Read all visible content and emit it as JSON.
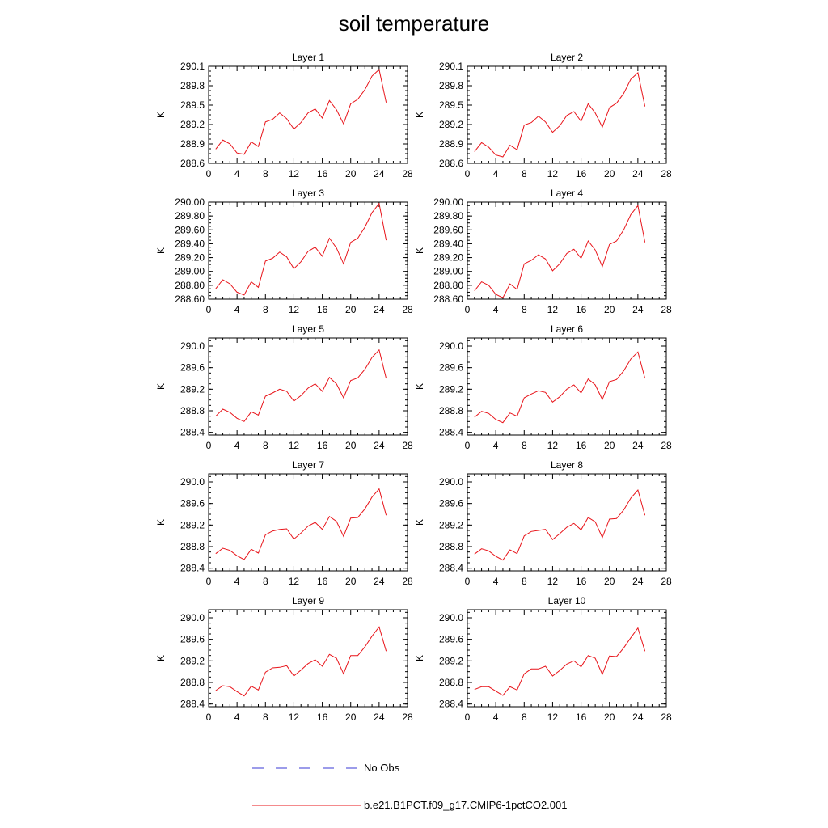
{
  "title": "soil temperature",
  "colors": {
    "model": "#e8141a",
    "obs": "#3a3ad6",
    "axis": "#000000"
  },
  "chart_data": [
    {
      "type": "line",
      "title": "Layer 1",
      "ylabel": "K",
      "xlim": [
        0,
        28
      ],
      "ylim": [
        288.6,
        290.1
      ],
      "xticks": [
        "0",
        "4",
        "8",
        "12",
        "16",
        "20",
        "24",
        "28"
      ],
      "yticks": [
        "288.6",
        "288.9",
        "289.2",
        "289.5",
        "289.8",
        "290.1"
      ],
      "x": [
        1,
        2,
        3,
        4,
        5,
        6,
        7,
        8,
        9,
        10,
        11,
        12,
        13,
        14,
        15,
        16,
        17,
        18,
        19,
        20,
        21,
        22,
        23,
        24,
        25
      ],
      "series": [
        {
          "name": "b.e21.B1PCT.f09_g17.CMIP6-1pctCO2.001",
          "values": [
            288.82,
            288.96,
            288.9,
            288.76,
            288.74,
            288.93,
            288.86,
            289.24,
            289.28,
            289.38,
            289.29,
            289.13,
            289.23,
            289.38,
            289.44,
            289.3,
            289.57,
            289.43,
            289.21,
            289.52,
            289.59,
            289.74,
            289.95,
            290.05,
            289.54
          ]
        }
      ]
    },
    {
      "type": "line",
      "title": "Layer 2",
      "ylabel": "K",
      "xlim": [
        0,
        28
      ],
      "ylim": [
        288.6,
        290.1
      ],
      "xticks": [
        "0",
        "4",
        "8",
        "12",
        "16",
        "20",
        "24",
        "28"
      ],
      "yticks": [
        "288.6",
        "288.9",
        "289.2",
        "289.5",
        "289.8",
        "290.1"
      ],
      "x": [
        1,
        2,
        3,
        4,
        5,
        6,
        7,
        8,
        9,
        10,
        11,
        12,
        13,
        14,
        15,
        16,
        17,
        18,
        19,
        20,
        21,
        22,
        23,
        24,
        25
      ],
      "series": [
        {
          "name": "b.e21.B1PCT.f09_g17.CMIP6-1pctCO2.001",
          "values": [
            288.78,
            288.92,
            288.85,
            288.73,
            288.7,
            288.88,
            288.81,
            289.19,
            289.23,
            289.33,
            289.24,
            289.08,
            289.18,
            289.34,
            289.4,
            289.25,
            289.52,
            289.38,
            289.16,
            289.46,
            289.53,
            289.68,
            289.9,
            290.0,
            289.48
          ]
        }
      ]
    },
    {
      "type": "line",
      "title": "Layer 3",
      "ylabel": "K",
      "xlim": [
        0,
        28
      ],
      "ylim": [
        288.6,
        290.0
      ],
      "xticks": [
        "0",
        "4",
        "8",
        "12",
        "16",
        "20",
        "24",
        "28"
      ],
      "yticks": [
        "288.60",
        "288.80",
        "289.00",
        "289.20",
        "289.40",
        "289.60",
        "289.80",
        "290.00"
      ],
      "x": [
        1,
        2,
        3,
        4,
        5,
        6,
        7,
        8,
        9,
        10,
        11,
        12,
        13,
        14,
        15,
        16,
        17,
        18,
        19,
        20,
        21,
        22,
        23,
        24,
        25
      ],
      "series": [
        {
          "name": "b.e21.B1PCT.f09_g17.CMIP6-1pctCO2.001",
          "values": [
            288.75,
            288.88,
            288.82,
            288.7,
            288.66,
            288.85,
            288.77,
            289.15,
            289.19,
            289.28,
            289.21,
            289.04,
            289.14,
            289.29,
            289.35,
            289.22,
            289.48,
            289.34,
            289.11,
            289.42,
            289.48,
            289.64,
            289.85,
            289.98,
            289.45
          ]
        }
      ]
    },
    {
      "type": "line",
      "title": "Layer 4",
      "ylabel": "K",
      "xlim": [
        0,
        28
      ],
      "ylim": [
        288.6,
        290.0
      ],
      "xticks": [
        "0",
        "4",
        "8",
        "12",
        "16",
        "20",
        "24",
        "28"
      ],
      "yticks": [
        "288.60",
        "288.80",
        "289.00",
        "289.20",
        "289.40",
        "289.60",
        "289.80",
        "290.00"
      ],
      "x": [
        1,
        2,
        3,
        4,
        5,
        6,
        7,
        8,
        9,
        10,
        11,
        12,
        13,
        14,
        15,
        16,
        17,
        18,
        19,
        20,
        21,
        22,
        23,
        24,
        25
      ],
      "series": [
        {
          "name": "b.e21.B1PCT.f09_g17.CMIP6-1pctCO2.001",
          "values": [
            288.72,
            288.85,
            288.8,
            288.67,
            288.62,
            288.82,
            288.74,
            289.11,
            289.16,
            289.24,
            289.18,
            289.01,
            289.11,
            289.26,
            289.32,
            289.19,
            289.44,
            289.31,
            289.07,
            289.39,
            289.44,
            289.6,
            289.82,
            289.95,
            289.42
          ]
        }
      ]
    },
    {
      "type": "line",
      "title": "Layer 5",
      "ylabel": "K",
      "xlim": [
        0,
        28
      ],
      "ylim": [
        288.35,
        290.15
      ],
      "xticks": [
        "0",
        "4",
        "8",
        "12",
        "16",
        "20",
        "24",
        "28"
      ],
      "yticks": [
        "288.4",
        "288.8",
        "289.2",
        "289.6",
        "290.0"
      ],
      "x": [
        1,
        2,
        3,
        4,
        5,
        6,
        7,
        8,
        9,
        10,
        11,
        12,
        13,
        14,
        15,
        16,
        17,
        18,
        19,
        20,
        21,
        22,
        23,
        24,
        25
      ],
      "series": [
        {
          "name": "b.e21.B1PCT.f09_g17.CMIP6-1pctCO2.001",
          "values": [
            288.7,
            288.83,
            288.77,
            288.66,
            288.6,
            288.78,
            288.72,
            289.07,
            289.13,
            289.2,
            289.16,
            288.98,
            289.08,
            289.22,
            289.3,
            289.16,
            289.42,
            289.3,
            289.04,
            289.36,
            289.41,
            289.57,
            289.79,
            289.93,
            289.4
          ]
        }
      ]
    },
    {
      "type": "line",
      "title": "Layer 6",
      "ylabel": "K",
      "xlim": [
        0,
        28
      ],
      "ylim": [
        288.35,
        290.15
      ],
      "xticks": [
        "0",
        "4",
        "8",
        "12",
        "16",
        "20",
        "24",
        "28"
      ],
      "yticks": [
        "288.4",
        "288.8",
        "289.2",
        "289.6",
        "290.0"
      ],
      "x": [
        1,
        2,
        3,
        4,
        5,
        6,
        7,
        8,
        9,
        10,
        11,
        12,
        13,
        14,
        15,
        16,
        17,
        18,
        19,
        20,
        21,
        22,
        23,
        24,
        25
      ],
      "series": [
        {
          "name": "b.e21.B1PCT.f09_g17.CMIP6-1pctCO2.001",
          "values": [
            288.68,
            288.79,
            288.75,
            288.64,
            288.58,
            288.76,
            288.7,
            289.04,
            289.11,
            289.17,
            289.14,
            288.96,
            289.06,
            289.2,
            289.28,
            289.13,
            289.39,
            289.28,
            289.01,
            289.34,
            289.38,
            289.54,
            289.76,
            289.89,
            289.4
          ]
        }
      ]
    },
    {
      "type": "line",
      "title": "Layer 7",
      "ylabel": "K",
      "xlim": [
        0,
        28
      ],
      "ylim": [
        288.35,
        290.15
      ],
      "xticks": [
        "0",
        "4",
        "8",
        "12",
        "16",
        "20",
        "24",
        "28"
      ],
      "yticks": [
        "288.4",
        "288.8",
        "289.2",
        "289.6",
        "290.0"
      ],
      "x": [
        1,
        2,
        3,
        4,
        5,
        6,
        7,
        8,
        9,
        10,
        11,
        12,
        13,
        14,
        15,
        16,
        17,
        18,
        19,
        20,
        21,
        22,
        23,
        24,
        25
      ],
      "series": [
        {
          "name": "b.e21.B1PCT.f09_g17.CMIP6-1pctCO2.001",
          "values": [
            288.67,
            288.77,
            288.73,
            288.63,
            288.56,
            288.75,
            288.68,
            289.02,
            289.09,
            289.12,
            289.13,
            288.94,
            289.05,
            289.18,
            289.25,
            289.12,
            289.36,
            289.27,
            288.99,
            289.33,
            289.34,
            289.5,
            289.72,
            289.87,
            289.38
          ]
        }
      ]
    },
    {
      "type": "line",
      "title": "Layer 8",
      "ylabel": "K",
      "xlim": [
        0,
        28
      ],
      "ylim": [
        288.35,
        290.15
      ],
      "xticks": [
        "0",
        "4",
        "8",
        "12",
        "16",
        "20",
        "24",
        "28"
      ],
      "yticks": [
        "288.4",
        "288.8",
        "289.2",
        "289.6",
        "290.0"
      ],
      "x": [
        1,
        2,
        3,
        4,
        5,
        6,
        7,
        8,
        9,
        10,
        11,
        12,
        13,
        14,
        15,
        16,
        17,
        18,
        19,
        20,
        21,
        22,
        23,
        24,
        25
      ],
      "series": [
        {
          "name": "b.e21.B1PCT.f09_g17.CMIP6-1pctCO2.001",
          "values": [
            288.66,
            288.76,
            288.72,
            288.62,
            288.55,
            288.74,
            288.67,
            289.0,
            289.08,
            289.1,
            289.12,
            288.93,
            289.04,
            289.16,
            289.23,
            289.11,
            289.34,
            289.26,
            288.97,
            289.31,
            289.32,
            289.48,
            289.7,
            289.85,
            289.38
          ]
        }
      ]
    },
    {
      "type": "line",
      "title": "Layer 9",
      "ylabel": "K",
      "xlim": [
        0,
        28
      ],
      "ylim": [
        288.35,
        290.15
      ],
      "xticks": [
        "0",
        "4",
        "8",
        "12",
        "16",
        "20",
        "24",
        "28"
      ],
      "yticks": [
        "288.4",
        "288.8",
        "289.2",
        "289.6",
        "290.0"
      ],
      "x": [
        1,
        2,
        3,
        4,
        5,
        6,
        7,
        8,
        9,
        10,
        11,
        12,
        13,
        14,
        15,
        16,
        17,
        18,
        19,
        20,
        21,
        22,
        23,
        24,
        25
      ],
      "series": [
        {
          "name": "b.e21.B1PCT.f09_g17.CMIP6-1pctCO2.001",
          "values": [
            288.65,
            288.74,
            288.72,
            288.63,
            288.55,
            288.73,
            288.66,
            288.99,
            289.07,
            289.08,
            289.11,
            288.92,
            289.03,
            289.15,
            289.22,
            289.1,
            289.32,
            289.25,
            288.96,
            289.3,
            289.3,
            289.46,
            289.66,
            289.83,
            289.38
          ]
        }
      ]
    },
    {
      "type": "line",
      "title": "Layer 10",
      "ylabel": "K",
      "xlim": [
        0,
        28
      ],
      "ylim": [
        288.35,
        290.15
      ],
      "xticks": [
        "0",
        "4",
        "8",
        "12",
        "16",
        "20",
        "24",
        "28"
      ],
      "yticks": [
        "288.4",
        "288.8",
        "289.2",
        "289.6",
        "290.0"
      ],
      "x": [
        1,
        2,
        3,
        4,
        5,
        6,
        7,
        8,
        9,
        10,
        11,
        12,
        13,
        14,
        15,
        16,
        17,
        18,
        19,
        20,
        21,
        22,
        23,
        24,
        25
      ],
      "series": [
        {
          "name": "b.e21.B1PCT.f09_g17.CMIP6-1pctCO2.001",
          "values": [
            288.67,
            288.72,
            288.72,
            288.64,
            288.56,
            288.72,
            288.66,
            288.96,
            289.05,
            289.05,
            289.1,
            288.92,
            289.02,
            289.14,
            289.2,
            289.09,
            289.3,
            289.25,
            288.95,
            289.29,
            289.28,
            289.44,
            289.63,
            289.81,
            289.38
          ]
        }
      ]
    }
  ],
  "legend": {
    "items": [
      {
        "label": "No Obs",
        "style": "dashed",
        "color": "#3a3ad6"
      },
      {
        "label": "b.e21.B1PCT.f09_g17.CMIP6-1pctCO2.001",
        "style": "solid",
        "color": "#e8141a"
      }
    ]
  }
}
